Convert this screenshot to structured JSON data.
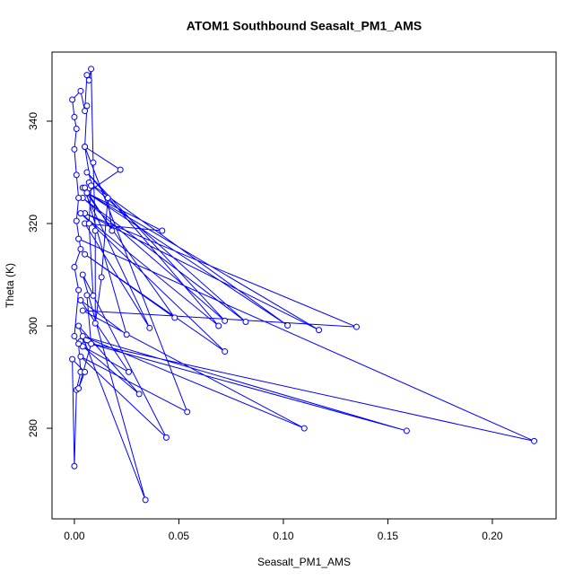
{
  "chart_data": {
    "type": "line",
    "title": "ATOM1 Southbound Seasalt_PM1_AMS",
    "x_label": "Seasalt_PM1_AMS",
    "y_label": "Theta (K)",
    "xlim": [
      -0.0107,
      0.2305
    ],
    "ylim": [
      262.3,
      353.5
    ],
    "xticks": [
      {
        "value": 0,
        "label": "0.00"
      },
      {
        "value": 0.05,
        "label": "0.05"
      },
      {
        "value": 0.1,
        "label": "0.10"
      },
      {
        "value": 0.15,
        "label": "0.15"
      },
      {
        "value": 0.2,
        "label": "0.20"
      }
    ],
    "yticks": [
      280,
      300,
      320,
      340
    ],
    "series": [
      {
        "color": "#0000ff",
        "x": [
          0.002,
          0.22,
          0.003,
          0.159,
          0.004,
          0.11,
          0.004,
          0.135,
          0.005,
          0.117,
          0.006,
          0.102,
          0.007,
          0.082,
          0.004,
          0.072,
          0.006,
          0.069,
          0.003,
          0.072,
          0.005,
          0.048,
          0.004,
          0.036,
          0.005,
          0.042,
          0.006,
          0.022,
          0.005,
          0.054,
          0.003,
          0.044,
          0.004,
          0.034,
          0.002,
          0.031,
          0.004,
          0.026,
          0.003,
          0.025,
          0.005,
          0.018,
          0.016,
          0.013,
          0.01,
          0.01,
          0.009,
          0.008,
          0.007,
          0.006,
          0.005,
          0.003,
          -0.001,
          0.0,
          0.001,
          0.0,
          0.001,
          0.002,
          0.001,
          0.003,
          0.0,
          0.002,
          0.0,
          0.002,
          0.003,
          0.001,
          0.0,
          -0.001,
          0.005,
          0.002,
          0.008,
          0.006,
          0.009,
          0.007,
          0.008,
          0.005,
          0.006
        ],
        "values": [
          317,
          277.5,
          297,
          279.5,
          298,
          280,
          303,
          299.8,
          322,
          299.2,
          326,
          300.1,
          328,
          300.8,
          325,
          301,
          330,
          300,
          322,
          295,
          314,
          301.6,
          327,
          299.6,
          320,
          318.6,
          326,
          330.5,
          335,
          283.2,
          294,
          278.2,
          310,
          266,
          300,
          286.7,
          296,
          291,
          305,
          298.3,
          327,
          318.6,
          325,
          309.5,
          300.5,
          318.6,
          331.9,
          350.2,
          348,
          349,
          342,
          345.9,
          344.2,
          340.8,
          338.5,
          334.5,
          329.5,
          325,
          320.5,
          315,
          311.5,
          307,
          298,
          296.5,
          291,
          287.5,
          272.6,
          293.5,
          291,
          287.8,
          296.5,
          306,
          305.9,
          320,
          327.4,
          335,
          343
        ]
      }
    ]
  }
}
